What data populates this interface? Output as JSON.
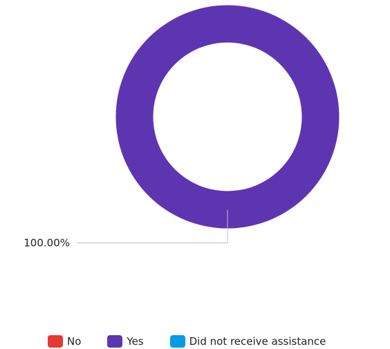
{
  "chart_data": {
    "type": "pie",
    "donut": true,
    "categories": [
      "No",
      "Yes",
      "Did not receive assistance"
    ],
    "values": [
      0,
      100,
      0
    ],
    "data_labels": [
      "",
      "100.00%",
      ""
    ],
    "colors": [
      "#e53935",
      "#5e35b1",
      "#039be5"
    ],
    "legend": {
      "position": "bottom",
      "items": [
        "No",
        "Yes",
        "Did not receive assistance"
      ]
    }
  }
}
